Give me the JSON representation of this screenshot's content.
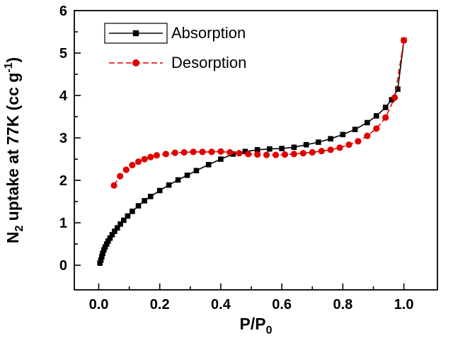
{
  "chart_data": {
    "type": "line",
    "title": "",
    "xlabel": "P/P0",
    "ylabel": "N2 uptake at 77K (cc g-1)",
    "xlabel_parts": [
      {
        "t": "P/P"
      },
      {
        "t": "0",
        "sub": true
      }
    ],
    "ylabel_parts": [
      {
        "t": "N"
      },
      {
        "t": "2",
        "sub": true
      },
      {
        "t": " uptake at 77K (cc g"
      },
      {
        "t": "-1",
        "sup": true
      },
      {
        "t": ")"
      }
    ],
    "xlim": [
      -0.08,
      1.11
    ],
    "ylim": [
      -0.58,
      6.0
    ],
    "x_ticks": [
      0.0,
      0.2,
      0.4,
      0.6,
      0.8,
      1.0
    ],
    "x_tick_labels": [
      "0.0",
      "0.2",
      "0.4",
      "0.6",
      "0.8",
      "1.0"
    ],
    "x_minor_step": 0.1,
    "y_ticks": [
      0,
      1,
      2,
      3,
      4,
      5,
      6
    ],
    "y_tick_labels": [
      "0",
      "1",
      "2",
      "3",
      "4",
      "5",
      "6"
    ],
    "y_minor_step": 0.5,
    "grid": false,
    "legend_position": "top-left",
    "frame_color": "#000000",
    "series": [
      {
        "name": "Absorption",
        "color": "#000000",
        "marker": "square",
        "line": "solid",
        "legend_sample_boxed": true,
        "x": [
          0.004,
          0.007,
          0.01,
          0.013,
          0.017,
          0.021,
          0.026,
          0.031,
          0.037,
          0.044,
          0.052,
          0.061,
          0.071,
          0.082,
          0.095,
          0.11,
          0.13,
          0.15,
          0.17,
          0.2,
          0.23,
          0.26,
          0.29,
          0.32,
          0.36,
          0.4,
          0.44,
          0.48,
          0.52,
          0.56,
          0.6,
          0.64,
          0.68,
          0.72,
          0.76,
          0.8,
          0.84,
          0.88,
          0.91,
          0.94,
          0.96,
          0.98,
          1.0
        ],
        "y": [
          0.05,
          0.12,
          0.2,
          0.28,
          0.36,
          0.43,
          0.5,
          0.57,
          0.64,
          0.72,
          0.8,
          0.88,
          0.97,
          1.06,
          1.16,
          1.27,
          1.4,
          1.52,
          1.62,
          1.76,
          1.89,
          2.01,
          2.12,
          2.23,
          2.37,
          2.5,
          2.62,
          2.68,
          2.72,
          2.74,
          2.75,
          2.78,
          2.84,
          2.9,
          2.98,
          3.08,
          3.2,
          3.36,
          3.52,
          3.72,
          3.9,
          4.15,
          5.3
        ]
      },
      {
        "name": "Desorption",
        "color": "#e00000",
        "marker": "circle",
        "line": "dashed",
        "legend_sample_boxed": false,
        "x": [
          0.05,
          0.07,
          0.09,
          0.11,
          0.13,
          0.15,
          0.17,
          0.19,
          0.22,
          0.25,
          0.28,
          0.31,
          0.34,
          0.37,
          0.4,
          0.43,
          0.46,
          0.49,
          0.52,
          0.55,
          0.58,
          0.61,
          0.64,
          0.67,
          0.7,
          0.73,
          0.76,
          0.79,
          0.82,
          0.85,
          0.88,
          0.91,
          0.94,
          0.97,
          1.0
        ],
        "y": [
          1.88,
          2.1,
          2.25,
          2.36,
          2.44,
          2.5,
          2.55,
          2.59,
          2.62,
          2.65,
          2.66,
          2.67,
          2.67,
          2.67,
          2.68,
          2.66,
          2.64,
          2.62,
          2.61,
          2.6,
          2.6,
          2.61,
          2.62,
          2.64,
          2.66,
          2.69,
          2.72,
          2.77,
          2.84,
          2.92,
          3.05,
          3.22,
          3.48,
          3.95,
          5.3
        ]
      }
    ]
  }
}
